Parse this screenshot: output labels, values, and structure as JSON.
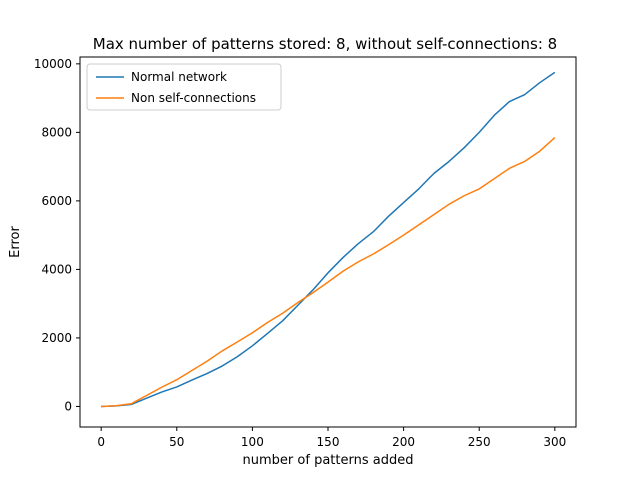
{
  "chart_data": {
    "type": "line",
    "title": "Max number of patterns stored: 8, without self-connections: 8",
    "xlabel": "number of patterns added",
    "ylabel": "Error",
    "xlim": [
      -14,
      314
    ],
    "ylim": [
      -600,
      10200
    ],
    "xticks": [
      0,
      50,
      100,
      150,
      200,
      250,
      300
    ],
    "yticks": [
      0,
      2000,
      4000,
      6000,
      8000,
      10000
    ],
    "grid": false,
    "legend_position": "upper-left",
    "series": [
      {
        "name": "Normal network",
        "color": "#1f77b4",
        "x": [
          0,
          10,
          20,
          25,
          30,
          40,
          50,
          60,
          70,
          80,
          90,
          100,
          110,
          120,
          130,
          140,
          150,
          160,
          170,
          180,
          190,
          200,
          210,
          220,
          230,
          240,
          250,
          260,
          270,
          280,
          290,
          300
        ],
        "y": [
          0,
          15,
          60,
          150,
          240,
          420,
          570,
          770,
          960,
          1180,
          1450,
          1770,
          2130,
          2500,
          2950,
          3400,
          3900,
          4350,
          4750,
          5100,
          5550,
          5950,
          6350,
          6800,
          7150,
          7550,
          8000,
          8500,
          8900,
          9100,
          9450,
          9750
        ]
      },
      {
        "name": "Non self-connections",
        "color": "#ff7f0e",
        "x": [
          0,
          10,
          20,
          25,
          30,
          40,
          50,
          60,
          70,
          80,
          90,
          100,
          110,
          120,
          130,
          140,
          150,
          160,
          170,
          180,
          190,
          200,
          210,
          220,
          230,
          240,
          250,
          260,
          270,
          280,
          290,
          300
        ],
        "y": [
          0,
          20,
          80,
          200,
          320,
          560,
          780,
          1050,
          1320,
          1620,
          1880,
          2150,
          2450,
          2720,
          3030,
          3320,
          3630,
          3950,
          4220,
          4450,
          4720,
          5000,
          5300,
          5600,
          5900,
          6150,
          6350,
          6650,
          6950,
          7150,
          7450,
          7850
        ]
      }
    ]
  }
}
